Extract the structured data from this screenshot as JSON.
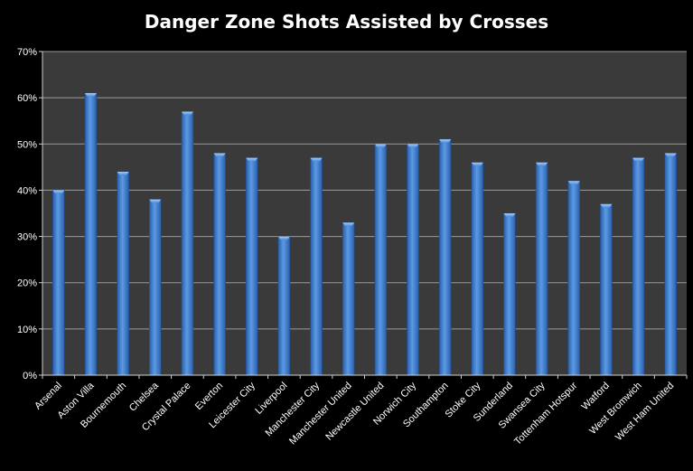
{
  "chart_data": {
    "type": "bar",
    "title": "Danger Zone Shots Assisted by Crosses",
    "xlabel": "",
    "ylabel": "",
    "categories": [
      "Arsenal",
      "Aston Villa",
      "Bournemouth",
      "Chelsea",
      "Crystal Palace",
      "Everton",
      "Leicester City",
      "Liverpool",
      "Manchester City",
      "Manchester United",
      "Newcastle United",
      "Norwich City",
      "Southampton",
      "Stoke City",
      "Sunderland",
      "Swansea City",
      "Tottenham Hotspur",
      "Watford",
      "West Bromwich",
      "West Ham United"
    ],
    "values": [
      40,
      61,
      44,
      38,
      57,
      48,
      47,
      30,
      47,
      33,
      50,
      50,
      51,
      46,
      35,
      46,
      42,
      37,
      47,
      48
    ],
    "ylim": [
      0,
      70
    ],
    "yticks": [
      "0%",
      "10%",
      "20%",
      "30%",
      "40%",
      "50%",
      "60%",
      "70%"
    ],
    "grid": true,
    "legend": "none",
    "colors": {
      "background": "#000000",
      "plot_area": "#3a3a3a",
      "gridline": "#9a9a9a",
      "bar": "#3f7fd0",
      "text": "#ffffff"
    }
  }
}
